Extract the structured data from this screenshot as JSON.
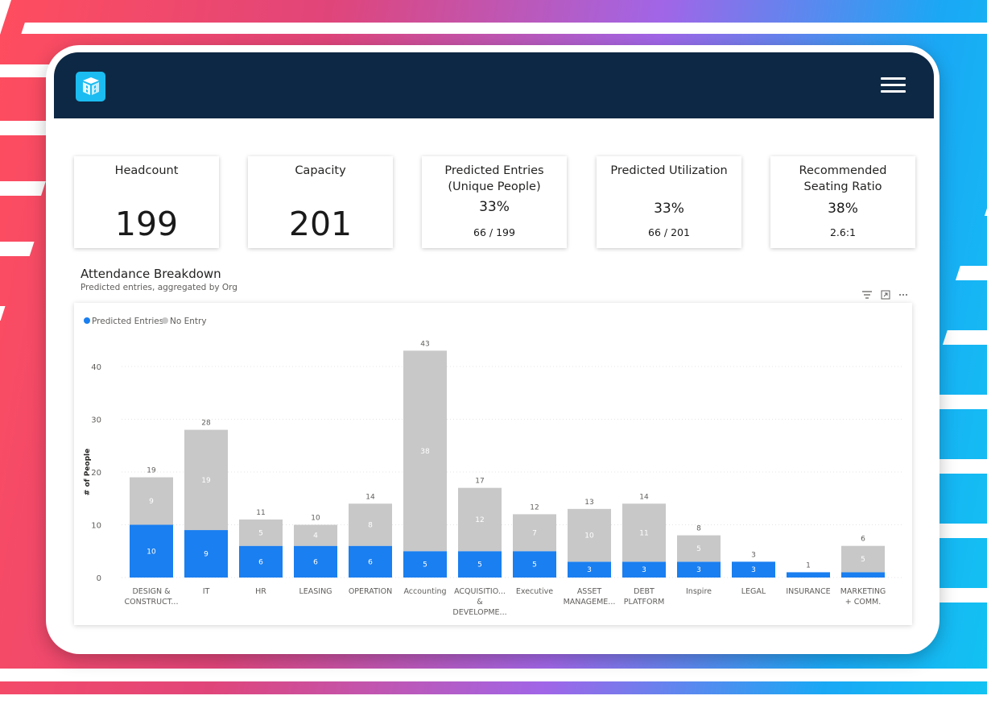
{
  "app": {
    "logo": "building-logo-icon",
    "menu_icon": "hamburger-menu-icon"
  },
  "colors": {
    "topbar": "#0d2844",
    "logo": "#1bbcf1",
    "predicted": "#1a7ff0",
    "no_entry": "#c8c8c8"
  },
  "kpis": [
    {
      "title": "Headcount",
      "value": "199"
    },
    {
      "title": "Capacity",
      "value": "201"
    },
    {
      "title_line1": "Predicted Entries",
      "title_line2": "(Unique People)",
      "percent": "33%",
      "detail": "66 / 199"
    },
    {
      "title": "Predicted Utilization",
      "percent": "33%",
      "detail": "66 / 201"
    },
    {
      "title_line1": "Recommended",
      "title_line2": "Seating Ratio",
      "percent": "38%",
      "detail": "2.6:1"
    }
  ],
  "chart": {
    "title": "Attendance Breakdown",
    "subtitle": "Predicted entries, aggregated by Org",
    "icons": [
      "filter-icon",
      "focus-mode-icon",
      "more-options-icon"
    ]
  },
  "chart_data": {
    "type": "bar",
    "stacked": true,
    "title": "Attendance Breakdown",
    "subtitle": "Predicted entries, aggregated by Org",
    "xlabel": "",
    "ylabel": "# of People",
    "ylim": [
      0,
      43
    ],
    "yticks": [
      0,
      10,
      20,
      30,
      40
    ],
    "legend_position": "top-left",
    "grid": true,
    "categories": [
      [
        "DESIGN &",
        "CONSTRUCT..."
      ],
      [
        "IT"
      ],
      [
        "HR"
      ],
      [
        "LEASING"
      ],
      [
        "OPERATION"
      ],
      [
        "Accounting"
      ],
      [
        "ACQUISITIO...",
        "&",
        "DEVELOPME..."
      ],
      [
        "Executive"
      ],
      [
        "ASSET",
        "MANAGEME..."
      ],
      [
        "DEBT",
        "PLATFORM"
      ],
      [
        "Inspire"
      ],
      [
        "LEGAL"
      ],
      [
        "INSURANCE"
      ],
      [
        "MARKETING",
        "+ COMM."
      ]
    ],
    "series": [
      {
        "name": "Predicted Entries",
        "color": "#1a7ff0",
        "values": [
          10,
          9,
          6,
          6,
          6,
          5,
          5,
          5,
          3,
          3,
          3,
          3,
          1,
          1
        ]
      },
      {
        "name": "No Entry",
        "color": "#c8c8c8",
        "values": [
          9,
          19,
          5,
          4,
          8,
          38,
          12,
          7,
          10,
          11,
          5,
          0,
          0,
          5
        ]
      }
    ],
    "inner_labels": {
      "Predicted Entries": [
        "10",
        "9",
        "6",
        "6",
        "6",
        "5",
        "5",
        "5",
        "3",
        "3",
        "3",
        "3",
        "",
        ""
      ],
      "No Entry": [
        "9",
        "19",
        "5",
        "4",
        "8",
        "38",
        "12",
        "7",
        "10",
        "11",
        "5",
        "",
        "",
        "5"
      ]
    },
    "totals": [
      19,
      28,
      11,
      10,
      14,
      43,
      17,
      12,
      13,
      14,
      8,
      3,
      1,
      6
    ]
  }
}
